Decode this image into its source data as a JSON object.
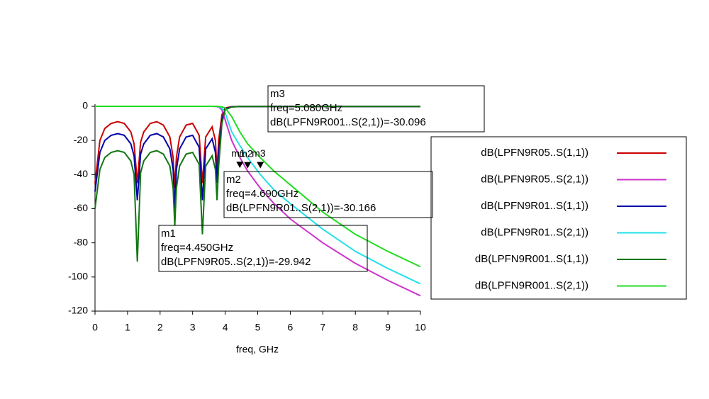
{
  "chart_data": {
    "type": "line",
    "x_label": "freq, GHz",
    "x": [
      0,
      0.15,
      0.3,
      0.5,
      0.7,
      0.9,
      1.1,
      1.2,
      1.3,
      1.4,
      1.5,
      1.7,
      1.9,
      2.1,
      2.3,
      2.4,
      2.45,
      2.5,
      2.6,
      2.8,
      3.0,
      3.2,
      3.3,
      3.4,
      3.6,
      3.7,
      3.75,
      3.8,
      3.9,
      4.0,
      4.2,
      4.45,
      4.69,
      5.08,
      5.5,
      6,
      7,
      8,
      9,
      10
    ],
    "xlim": [
      0,
      10
    ],
    "xticks": [
      0,
      1,
      2,
      3,
      4,
      5,
      6,
      7,
      8,
      9,
      10
    ],
    "ylim": [
      -120,
      0
    ],
    "yticks": [
      0,
      -20,
      -40,
      -60,
      -80,
      -100,
      -120
    ],
    "series": [
      {
        "name": "dB(LPFN9R05..S(1,1))",
        "color": "#cc0000",
        "values": [
          -45,
          -20,
          -13,
          -10,
          -9,
          -10,
          -15,
          -22,
          -45,
          -21,
          -15,
          -10,
          -9,
          -11,
          -18,
          -30,
          -48,
          -30,
          -18,
          -11,
          -10,
          -17,
          -45,
          -18,
          -12,
          -20,
          -38,
          -20,
          -5,
          -1,
          -0.2,
          -0.1,
          -0.1,
          -0.1,
          -0.1,
          -0.1,
          -0.1,
          -0.1,
          -0.1,
          -0.1
        ]
      },
      {
        "name": "dB(LPFN9R05..S(2,1))",
        "color": "#cc33cc",
        "values": [
          0,
          0,
          0,
          0,
          0,
          0,
          0,
          0,
          0,
          0,
          0,
          0,
          0,
          0,
          0,
          0,
          0,
          0,
          0,
          0,
          0,
          0,
          0,
          0,
          0,
          -0.1,
          -0.2,
          -0.5,
          -2,
          -8,
          -20,
          -29.942,
          -38,
          -48,
          -57,
          -66,
          -80,
          -92,
          -102,
          -111
        ]
      },
      {
        "name": "dB(LPFN9R01..S(1,1))",
        "color": "#0000aa",
        "values": [
          -50,
          -27,
          -20,
          -17,
          -16,
          -17,
          -22,
          -29,
          -55,
          -28,
          -22,
          -17,
          -16,
          -18,
          -25,
          -37,
          -60,
          -37,
          -25,
          -18,
          -17,
          -24,
          -55,
          -25,
          -19,
          -27,
          -45,
          -27,
          -8,
          -1.5,
          -0.3,
          -0.1,
          -0.1,
          -0.1,
          -0.1,
          -0.1,
          -0.1,
          -0.1,
          -0.1,
          -0.1
        ]
      },
      {
        "name": "dB(LPFN9R01..S(2,1))",
        "color": "#22e0e8",
        "values": [
          0,
          0,
          0,
          0,
          0,
          0,
          0,
          0,
          0,
          0,
          0,
          0,
          0,
          0,
          0,
          0,
          0,
          0,
          0,
          0,
          0,
          0,
          0,
          0,
          0,
          0,
          -0.1,
          -0.3,
          -1,
          -4,
          -15,
          -23,
          -30.166,
          -40,
          -49,
          -57,
          -72,
          -85,
          -95,
          -104
        ]
      },
      {
        "name": "dB(LPFN9R001..S(1,1))",
        "color": "#117711",
        "values": [
          -60,
          -37,
          -30,
          -27,
          -26,
          -27,
          -32,
          -40,
          -91,
          -39,
          -32,
          -27,
          -26,
          -28,
          -35,
          -48,
          -70,
          -48,
          -35,
          -28,
          -27,
          -34,
          -75,
          -35,
          -29,
          -37,
          -55,
          -35,
          -10,
          -2,
          -0.4,
          -0.1,
          -0.1,
          -0.1,
          -0.1,
          -0.1,
          -0.1,
          -0.1,
          -0.1,
          -0.1
        ]
      },
      {
        "name": "dB(LPFN9R001..S(2,1))",
        "color": "#22dd22",
        "values": [
          0,
          0,
          0,
          0,
          0,
          0,
          0,
          0,
          0,
          0,
          0,
          0,
          0,
          0,
          0,
          0,
          0,
          0,
          0,
          0,
          0,
          0,
          0,
          0,
          0,
          0,
          0,
          -0.1,
          -0.3,
          -1,
          -6,
          -15,
          -22,
          -30.096,
          -38,
          -46,
          -62,
          -75,
          -85,
          -94
        ]
      }
    ],
    "markers": [
      {
        "name": "m1",
        "x": 4.45,
        "y": -29.942,
        "lines": [
          "m1",
          "freq=4.450GHz",
          "dB(LPFN9R05..S(2,1))=-29.942"
        ]
      },
      {
        "name": "m2",
        "x": 4.69,
        "y": -30.166,
        "lines": [
          "m2",
          "freq=4.690GHz",
          "dB(LPFN9R01..S(2,1))=-30.166"
        ]
      },
      {
        "name": "m3",
        "x": 5.08,
        "y": -30.096,
        "lines": [
          "m3",
          "freq=5.080GHz",
          "dB(LPFN9R001..S(2,1))=-30.096"
        ]
      }
    ]
  }
}
